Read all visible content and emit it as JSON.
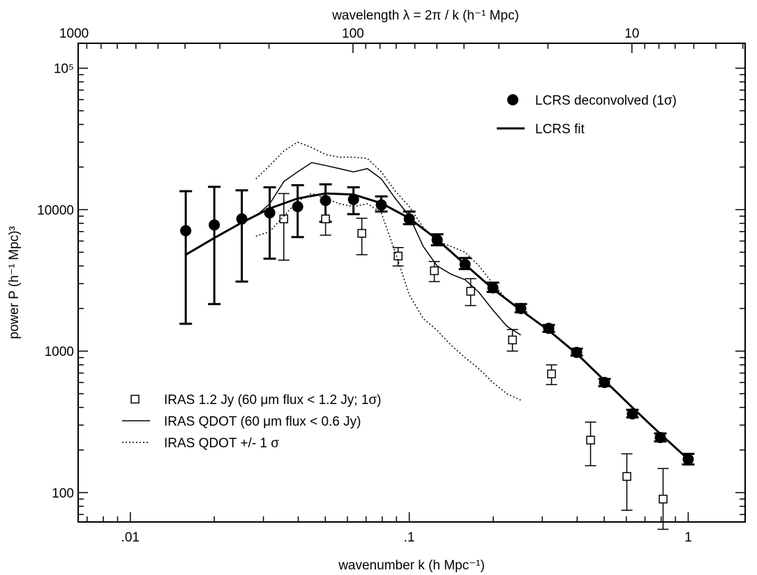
{
  "chart_data": {
    "type": "scatter",
    "xscale": "log",
    "yscale": "log",
    "xlim": [
      0.0065,
      1.6
    ],
    "ylim": [
      62,
      150000
    ],
    "xlabel": "wavenumber k (h Mpc⁻¹)",
    "ylabel": "power P (h⁻¹ Mpc)³",
    "x2label": "wavelength λ = 2π / k (h⁻¹ Mpc)",
    "x_ticks": [
      {
        "value": 0.01,
        "label": ".01"
      },
      {
        "value": 0.1,
        "label": ".1"
      },
      {
        "value": 1,
        "label": "1"
      }
    ],
    "x2_ticks": [
      {
        "value": 1000,
        "label": "1000"
      },
      {
        "value": 100,
        "label": "100"
      },
      {
        "value": 10,
        "label": "10"
      }
    ],
    "y_ticks": [
      {
        "value": 100,
        "label": "100"
      },
      {
        "value": 1000,
        "label": "1000"
      },
      {
        "value": 10000,
        "label": "10000"
      },
      {
        "value": 100000,
        "label": "10⁵"
      }
    ],
    "series": [
      {
        "name": "LCRS deconvolved (1σ)",
        "kind": "points-with-errors",
        "marker": "filled-circle",
        "points": [
          {
            "x": 0.0158,
            "y": 7100,
            "lo": 1560,
            "hi": 13500
          },
          {
            "x": 0.02,
            "y": 7800,
            "lo": 2150,
            "hi": 14500
          },
          {
            "x": 0.0251,
            "y": 8600,
            "lo": 3100,
            "hi": 13700
          },
          {
            "x": 0.0316,
            "y": 9500,
            "lo": 4500,
            "hi": 14400
          },
          {
            "x": 0.0398,
            "y": 10500,
            "lo": 6400,
            "hi": 14900
          },
          {
            "x": 0.0501,
            "y": 11600,
            "lo": 8200,
            "hi": 15100
          },
          {
            "x": 0.0631,
            "y": 11800,
            "lo": 9300,
            "hi": 14400
          },
          {
            "x": 0.0794,
            "y": 10800,
            "lo": 9700,
            "hi": 12400
          },
          {
            "x": 0.1,
            "y": 8600,
            "lo": 7900,
            "hi": 9700
          },
          {
            "x": 0.1259,
            "y": 6100,
            "lo": 5600,
            "hi": 6700
          },
          {
            "x": 0.1585,
            "y": 4100,
            "lo": 3800,
            "hi": 4550
          },
          {
            "x": 0.1995,
            "y": 2800,
            "lo": 2620,
            "hi": 3050
          },
          {
            "x": 0.2512,
            "y": 2000,
            "lo": 1880,
            "hi": 2150
          },
          {
            "x": 0.3162,
            "y": 1450,
            "lo": 1370,
            "hi": 1530
          },
          {
            "x": 0.3981,
            "y": 980,
            "lo": 930,
            "hi": 1040
          },
          {
            "x": 0.5012,
            "y": 600,
            "lo": 565,
            "hi": 635
          },
          {
            "x": 0.631,
            "y": 360,
            "lo": 340,
            "hi": 385
          },
          {
            "x": 0.7943,
            "y": 245,
            "lo": 230,
            "hi": 262
          },
          {
            "x": 1.0,
            "y": 172,
            "lo": 158,
            "hi": 188
          }
        ]
      },
      {
        "name": "LCRS fit",
        "kind": "line",
        "style": "thick",
        "points": [
          {
            "x": 0.0158,
            "y": 4800
          },
          {
            "x": 0.02,
            "y": 6300
          },
          {
            "x": 0.0251,
            "y": 8100
          },
          {
            "x": 0.0316,
            "y": 10200
          },
          {
            "x": 0.0398,
            "y": 12000
          },
          {
            "x": 0.0501,
            "y": 13000
          },
          {
            "x": 0.0631,
            "y": 12800
          },
          {
            "x": 0.0794,
            "y": 11100
          },
          {
            "x": 0.1,
            "y": 8700
          },
          {
            "x": 0.1259,
            "y": 6150
          },
          {
            "x": 0.1585,
            "y": 4100
          },
          {
            "x": 0.1995,
            "y": 2750
          },
          {
            "x": 0.2512,
            "y": 1950
          },
          {
            "x": 0.3162,
            "y": 1400
          },
          {
            "x": 0.3981,
            "y": 960
          },
          {
            "x": 0.5012,
            "y": 620
          },
          {
            "x": 0.631,
            "y": 400
          },
          {
            "x": 0.7943,
            "y": 260
          },
          {
            "x": 1.0,
            "y": 172
          }
        ]
      },
      {
        "name": "IRAS 1.2 Jy (60 μm flux < 1.2 Jy; 1σ)",
        "kind": "points-with-errors",
        "marker": "open-square",
        "points": [
          {
            "x": 0.0355,
            "y": 8600,
            "lo": 4400,
            "hi": 13000
          },
          {
            "x": 0.0501,
            "y": 8600,
            "lo": 6600,
            "hi": 11400
          },
          {
            "x": 0.0676,
            "y": 6800,
            "lo": 4800,
            "hi": 8700
          },
          {
            "x": 0.0912,
            "y": 4700,
            "lo": 4000,
            "hi": 5400
          },
          {
            "x": 0.123,
            "y": 3700,
            "lo": 3100,
            "hi": 4300
          },
          {
            "x": 0.166,
            "y": 2650,
            "lo": 2100,
            "hi": 3250
          },
          {
            "x": 0.2344,
            "y": 1200,
            "lo": 1000,
            "hi": 1420
          },
          {
            "x": 0.3236,
            "y": 690,
            "lo": 580,
            "hi": 800
          },
          {
            "x": 0.4467,
            "y": 235,
            "lo": 155,
            "hi": 315
          },
          {
            "x": 0.6026,
            "y": 130,
            "lo": 75,
            "hi": 188
          },
          {
            "x": 0.8128,
            "y": 90,
            "lo": 55,
            "hi": 148
          }
        ]
      },
      {
        "name": "IRAS QDOT (60 μm flux < 0.6 Jy)",
        "kind": "line",
        "style": "thin",
        "points": [
          {
            "x": 0.0282,
            "y": 9000
          },
          {
            "x": 0.0316,
            "y": 11000
          },
          {
            "x": 0.0355,
            "y": 15800
          },
          {
            "x": 0.0398,
            "y": 18500
          },
          {
            "x": 0.0447,
            "y": 21500
          },
          {
            "x": 0.0501,
            "y": 20500
          },
          {
            "x": 0.0562,
            "y": 19500
          },
          {
            "x": 0.0631,
            "y": 18500
          },
          {
            "x": 0.0708,
            "y": 19500
          },
          {
            "x": 0.0794,
            "y": 16500
          },
          {
            "x": 0.0891,
            "y": 12000
          },
          {
            "x": 0.1,
            "y": 9000
          },
          {
            "x": 0.1122,
            "y": 5500
          },
          {
            "x": 0.1259,
            "y": 4000
          },
          {
            "x": 0.1412,
            "y": 3500
          },
          {
            "x": 0.1585,
            "y": 3200
          },
          {
            "x": 0.1778,
            "y": 2600
          },
          {
            "x": 0.1995,
            "y": 1950
          },
          {
            "x": 0.2239,
            "y": 1500
          },
          {
            "x": 0.2512,
            "y": 1300
          }
        ]
      },
      {
        "name": "IRAS QDOT +/- 1 σ (upper)",
        "kind": "line",
        "style": "dotted",
        "points": [
          {
            "x": 0.0282,
            "y": 16500
          },
          {
            "x": 0.0316,
            "y": 20500
          },
          {
            "x": 0.0355,
            "y": 26000
          },
          {
            "x": 0.0398,
            "y": 30000
          },
          {
            "x": 0.0447,
            "y": 27500
          },
          {
            "x": 0.0501,
            "y": 24500
          },
          {
            "x": 0.0562,
            "y": 23500
          },
          {
            "x": 0.0631,
            "y": 23500
          },
          {
            "x": 0.0708,
            "y": 23000
          },
          {
            "x": 0.0794,
            "y": 18500
          },
          {
            "x": 0.0891,
            "y": 13500
          },
          {
            "x": 0.1,
            "y": 10500
          },
          {
            "x": 0.1122,
            "y": 7500
          },
          {
            "x": 0.1259,
            "y": 6000
          },
          {
            "x": 0.1412,
            "y": 5500
          },
          {
            "x": 0.1585,
            "y": 5000
          },
          {
            "x": 0.1778,
            "y": 4000
          },
          {
            "x": 0.1995,
            "y": 3000
          },
          {
            "x": 0.2239,
            "y": 2300
          },
          {
            "x": 0.2512,
            "y": 2000
          }
        ]
      },
      {
        "name": "IRAS QDOT +/- 1 σ (lower)",
        "kind": "line",
        "style": "dotted",
        "points": [
          {
            "x": 0.0282,
            "y": 6500
          },
          {
            "x": 0.0316,
            "y": 7000
          },
          {
            "x": 0.0355,
            "y": 9000
          },
          {
            "x": 0.0398,
            "y": 11500
          },
          {
            "x": 0.0447,
            "y": 13000
          },
          {
            "x": 0.0501,
            "y": 12000
          },
          {
            "x": 0.0562,
            "y": 11000
          },
          {
            "x": 0.0631,
            "y": 10500
          },
          {
            "x": 0.0708,
            "y": 11000
          },
          {
            "x": 0.0794,
            "y": 9500
          },
          {
            "x": 0.0891,
            "y": 5000
          },
          {
            "x": 0.1,
            "y": 2500
          },
          {
            "x": 0.1122,
            "y": 1700
          },
          {
            "x": 0.1259,
            "y": 1400
          },
          {
            "x": 0.1412,
            "y": 1100
          },
          {
            "x": 0.1585,
            "y": 900
          },
          {
            "x": 0.1778,
            "y": 750
          },
          {
            "x": 0.1995,
            "y": 600
          },
          {
            "x": 0.2239,
            "y": 500
          },
          {
            "x": 0.2512,
            "y": 450
          }
        ]
      }
    ],
    "legend_top": [
      {
        "label": "LCRS deconvolved (1σ)",
        "symbol": "filled-circle"
      },
      {
        "label": "LCRS fit",
        "symbol": "thick-line"
      }
    ],
    "legend_bottom": [
      {
        "label": "IRAS 1.2 Jy (60 μm flux < 1.2 Jy; 1σ)",
        "symbol": "open-square"
      },
      {
        "label": "IRAS QDOT (60 μm flux < 0.6 Jy)",
        "symbol": "thin-line"
      },
      {
        "label": "IRAS QDOT +/- 1 σ",
        "symbol": "dotted-line"
      }
    ]
  }
}
